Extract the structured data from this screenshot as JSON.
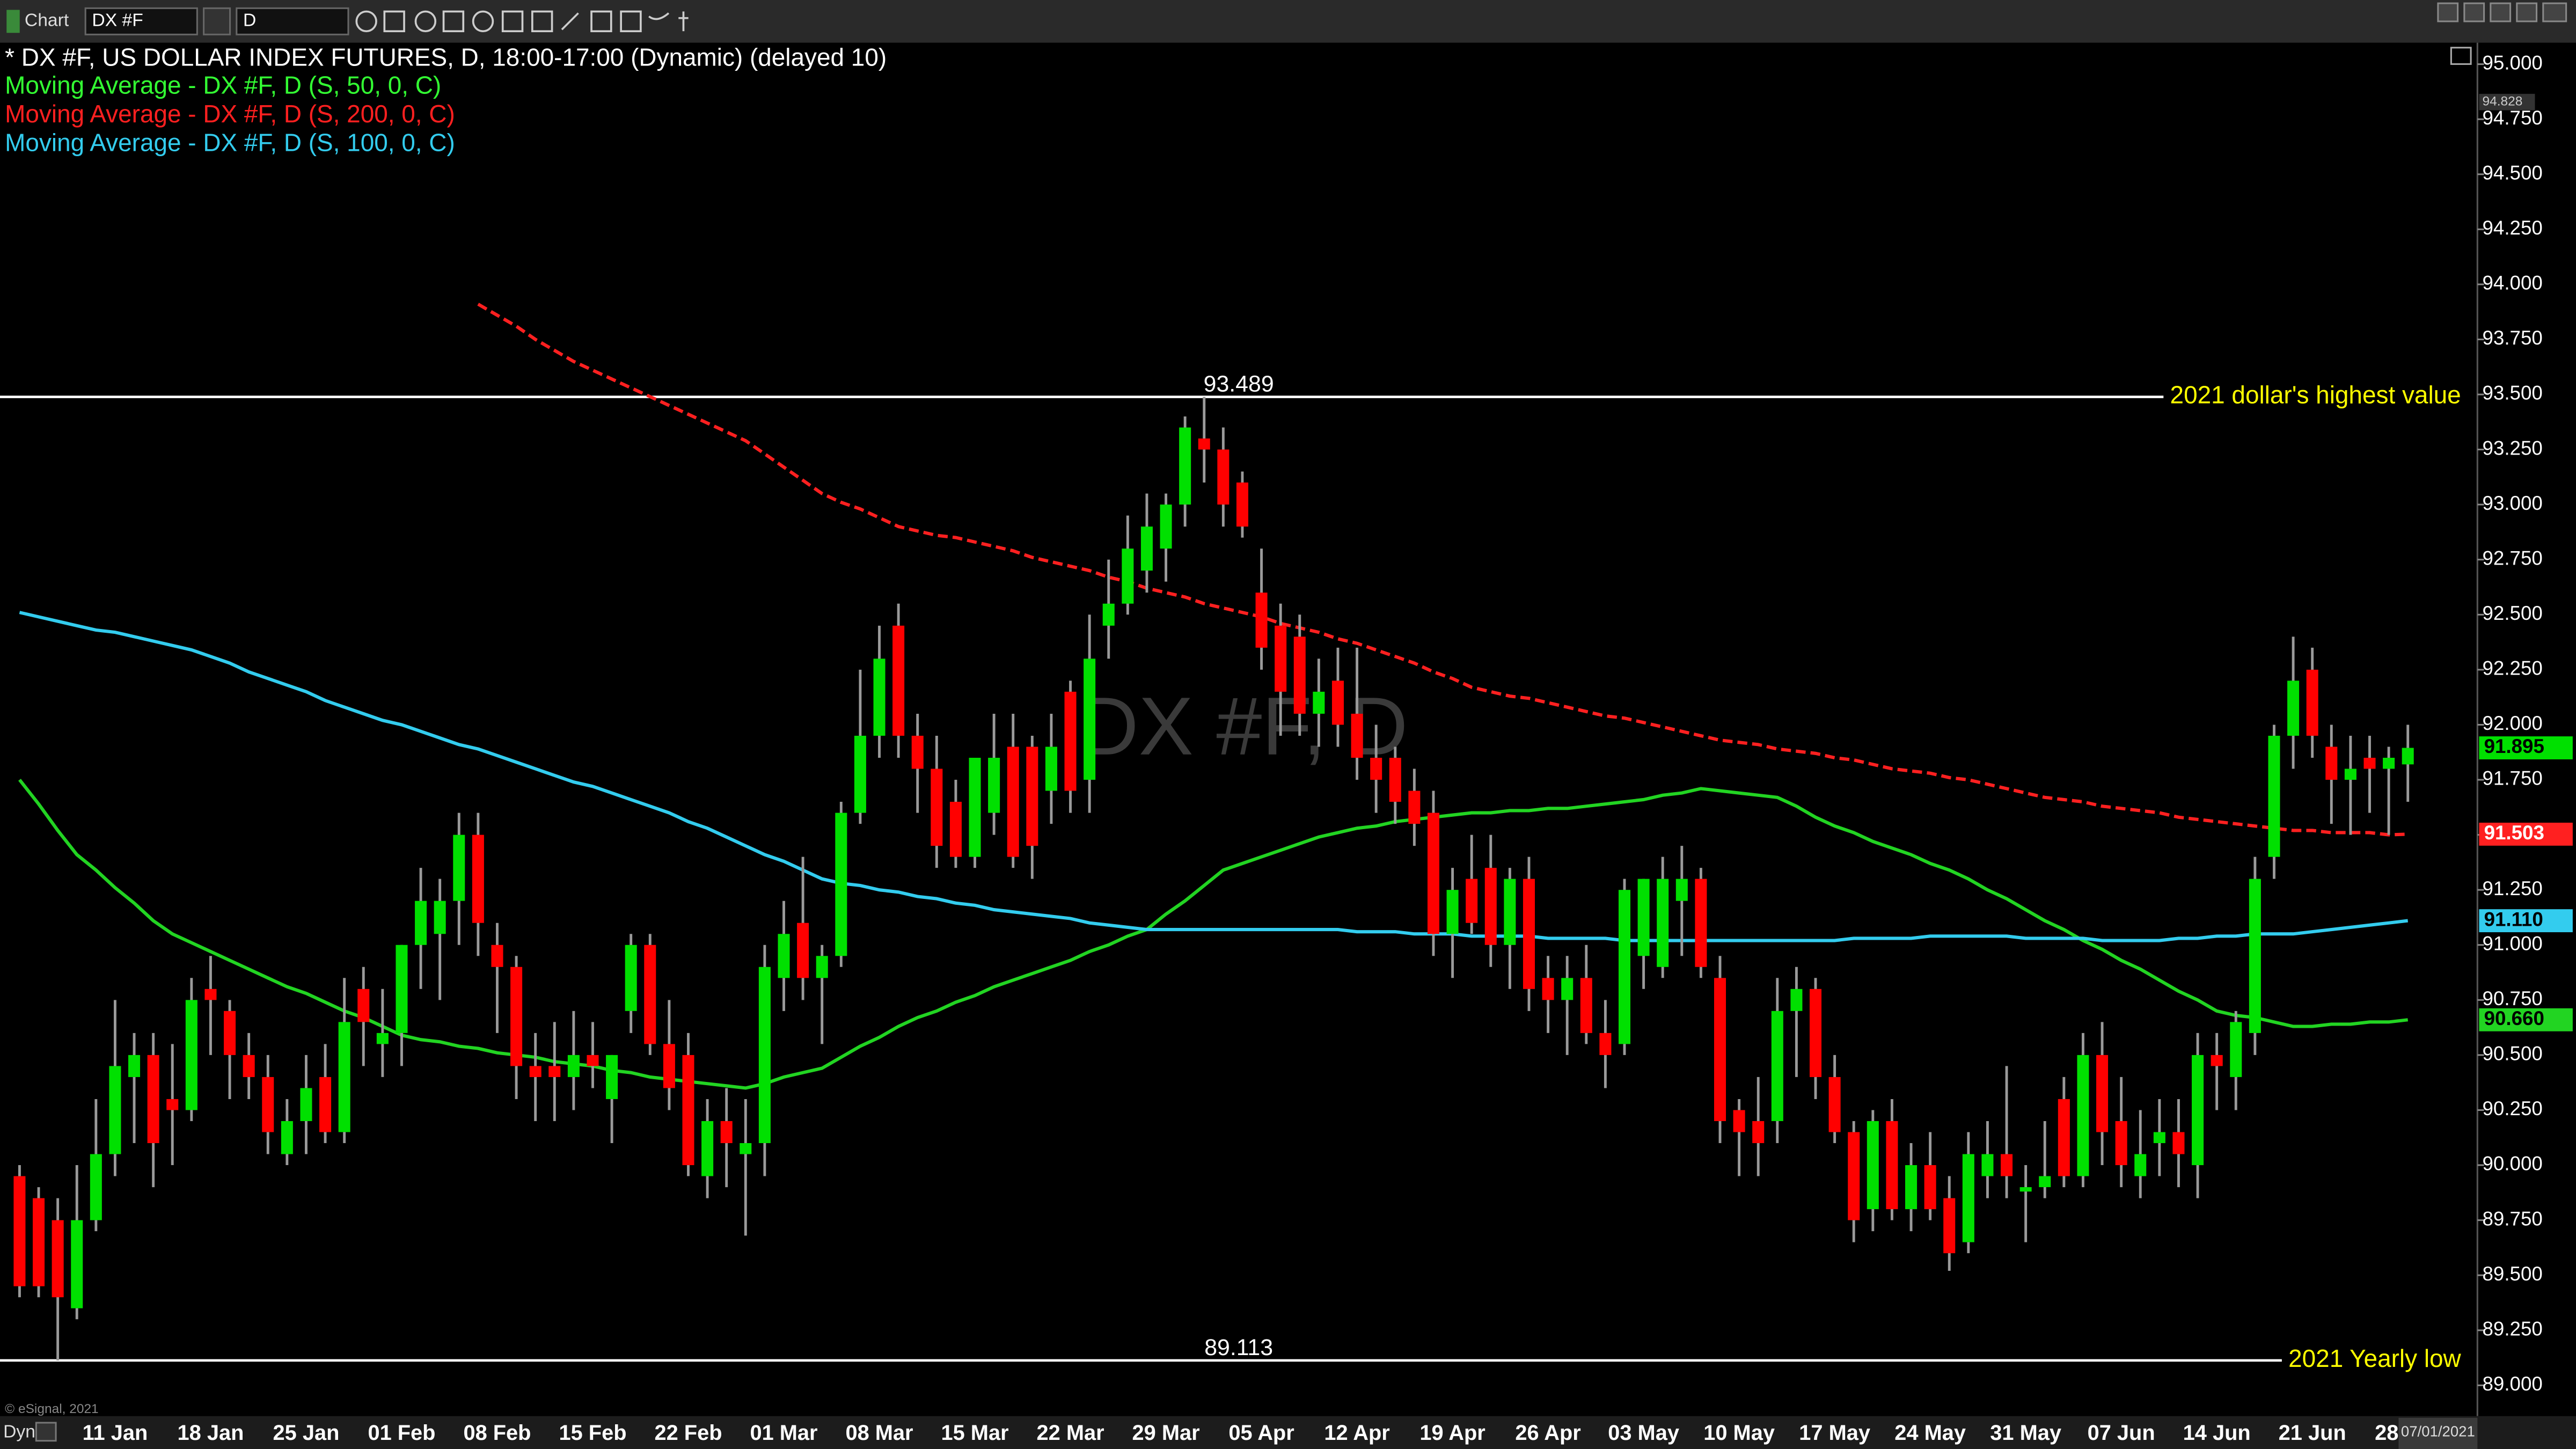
{
  "ui": {
    "toolbar": {
      "label": "Chart",
      "symbol": "DX #F",
      "interval": "D"
    },
    "footer": {
      "mode": "Dyn",
      "copyright": "© eSignal, 2021",
      "date": "07/01/2021"
    }
  },
  "chart_data": {
    "type": "candlestick",
    "title": "* DX #F, US DOLLAR INDEX FUTURES, D, 18:00-17:00 (Dynamic) (delayed 10)",
    "watermark": "DX #F, D",
    "up_color": "#00e000",
    "down_color": "#ff0000",
    "wick_color": "#9a9a9a",
    "categories": [
      null,
      null,
      null,
      null,
      null,
      "11 Jan",
      null,
      null,
      null,
      null,
      "18 Jan",
      null,
      null,
      null,
      null,
      "25 Jan",
      null,
      null,
      null,
      null,
      "01 Feb",
      null,
      null,
      null,
      null,
      "08 Feb",
      null,
      null,
      null,
      null,
      "15 Feb",
      null,
      null,
      null,
      null,
      "22 Feb",
      null,
      null,
      null,
      null,
      "01 Mar",
      null,
      null,
      null,
      null,
      "08 Mar",
      null,
      null,
      null,
      null,
      "15 Mar",
      null,
      null,
      null,
      null,
      "22 Mar",
      null,
      null,
      null,
      null,
      "29 Mar",
      null,
      null,
      null,
      null,
      "05 Apr",
      null,
      null,
      null,
      null,
      "12 Apr",
      null,
      null,
      null,
      null,
      "19 Apr",
      null,
      null,
      null,
      null,
      "26 Apr",
      null,
      null,
      null,
      null,
      "03 May",
      null,
      null,
      null,
      null,
      "10 May",
      null,
      null,
      null,
      null,
      "17 May",
      null,
      null,
      null,
      null,
      "24 May",
      null,
      null,
      null,
      null,
      "31 May",
      null,
      null,
      null,
      null,
      "07 Jun",
      null,
      null,
      null,
      null,
      "14 Jun",
      null,
      null,
      null,
      null,
      "21 Jun",
      null,
      null,
      null,
      null,
      "28"
    ],
    "open": [
      89.95,
      89.85,
      89.75,
      89.35,
      89.75,
      90.05,
      90.4,
      90.5,
      90.3,
      90.25,
      90.8,
      90.7,
      90.5,
      90.4,
      90.05,
      90.2,
      90.4,
      90.15,
      90.8,
      90.55,
      90.6,
      91.0,
      91.05,
      91.2,
      91.5,
      91.0,
      90.9,
      90.45,
      90.45,
      90.4,
      90.5,
      90.3,
      90.7,
      91.0,
      90.55,
      90.5,
      89.95,
      90.2,
      90.05,
      90.1,
      90.85,
      91.1,
      90.85,
      90.95,
      91.6,
      91.95,
      92.45,
      91.95,
      91.8,
      91.65,
      91.4,
      91.6,
      91.9,
      91.9,
      91.7,
      92.15,
      91.75,
      92.45,
      92.55,
      92.7,
      92.8,
      93.0,
      93.3,
      93.25,
      93.1,
      92.6,
      92.45,
      92.4,
      92.05,
      92.2,
      92.05,
      91.85,
      91.85,
      91.7,
      91.6,
      91.05,
      91.3,
      91.35,
      91.0,
      91.3,
      90.85,
      90.75,
      90.85,
      90.6,
      90.55,
      90.95,
      90.9,
      91.2,
      91.3,
      90.85,
      90.25,
      90.2,
      90.2,
      90.7,
      90.8,
      90.4,
      90.15,
      89.8,
      90.2,
      89.8,
      90.0,
      89.85,
      89.65,
      89.95,
      90.05,
      89.88,
      89.9,
      90.3,
      89.95,
      90.5,
      90.2,
      89.95,
      90.1,
      90.15,
      90.0,
      90.5,
      90.4,
      90.6,
      91.4,
      91.95,
      92.25,
      91.9,
      91.75,
      91.85,
      91.8,
      91.82
    ],
    "high": [
      90.0,
      89.9,
      89.85,
      90.0,
      90.3,
      90.75,
      90.6,
      90.6,
      90.55,
      90.85,
      90.95,
      90.75,
      90.6,
      90.5,
      90.3,
      90.5,
      90.55,
      90.85,
      90.9,
      90.8,
      91.0,
      91.35,
      91.3,
      91.6,
      91.6,
      91.1,
      90.95,
      90.6,
      90.65,
      90.7,
      90.65,
      90.5,
      91.05,
      91.05,
      90.75,
      90.6,
      90.3,
      90.35,
      90.3,
      91.0,
      91.2,
      91.4,
      91.0,
      91.65,
      92.25,
      92.45,
      92.55,
      92.05,
      91.95,
      91.75,
      91.85,
      92.05,
      92.05,
      91.95,
      92.05,
      92.2,
      92.5,
      92.75,
      92.95,
      93.05,
      93.05,
      93.4,
      93.489,
      93.35,
      93.15,
      92.8,
      92.55,
      92.5,
      92.3,
      92.35,
      92.35,
      92.0,
      91.9,
      91.8,
      91.7,
      91.35,
      91.5,
      91.5,
      91.35,
      91.4,
      90.95,
      90.95,
      91.0,
      90.75,
      91.3,
      91.3,
      91.4,
      91.45,
      91.35,
      90.95,
      90.3,
      90.4,
      90.85,
      90.9,
      90.85,
      90.5,
      90.2,
      90.25,
      90.3,
      90.1,
      90.15,
      89.95,
      90.15,
      90.2,
      90.45,
      90.0,
      90.2,
      90.4,
      90.6,
      90.65,
      90.4,
      90.25,
      90.3,
      90.3,
      90.6,
      90.6,
      90.7,
      91.4,
      92.0,
      92.4,
      92.35,
      92.0,
      91.95,
      91.95,
      91.9,
      92.0
    ],
    "low": [
      89.4,
      89.4,
      89.113,
      89.3,
      89.7,
      89.95,
      90.1,
      89.9,
      90.0,
      90.2,
      90.5,
      90.3,
      90.3,
      90.05,
      90.0,
      90.05,
      90.1,
      90.1,
      90.45,
      90.4,
      90.45,
      90.8,
      90.75,
      91.0,
      90.95,
      90.6,
      90.3,
      90.2,
      90.2,
      90.25,
      90.35,
      90.1,
      90.6,
      90.5,
      90.25,
      89.95,
      89.85,
      89.9,
      89.68,
      89.95,
      90.7,
      90.75,
      90.55,
      90.9,
      91.55,
      91.85,
      91.85,
      91.6,
      91.35,
      91.35,
      91.35,
      91.5,
      91.35,
      91.3,
      91.55,
      91.6,
      91.6,
      92.3,
      92.5,
      92.6,
      92.65,
      92.9,
      93.1,
      92.9,
      92.85,
      92.25,
      91.95,
      91.95,
      91.9,
      91.9,
      91.75,
      91.6,
      91.55,
      91.45,
      90.95,
      90.85,
      91.05,
      90.9,
      90.8,
      90.7,
      90.6,
      90.5,
      90.55,
      90.35,
      90.5,
      90.8,
      90.85,
      90.95,
      90.85,
      90.1,
      89.95,
      89.95,
      90.1,
      90.4,
      90.3,
      90.1,
      89.65,
      89.7,
      89.75,
      89.7,
      89.75,
      89.52,
      89.6,
      89.85,
      89.85,
      89.65,
      89.85,
      89.9,
      89.9,
      90.0,
      89.9,
      89.85,
      89.95,
      89.9,
      89.85,
      90.25,
      90.25,
      90.5,
      91.3,
      91.8,
      91.85,
      91.55,
      91.5,
      91.6,
      91.5,
      91.65
    ],
    "close": [
      89.45,
      89.45,
      89.4,
      89.75,
      90.05,
      90.45,
      90.5,
      90.1,
      90.25,
      90.75,
      90.75,
      90.5,
      90.4,
      90.15,
      90.2,
      90.35,
      90.15,
      90.65,
      90.65,
      90.6,
      91.0,
      91.2,
      91.2,
      91.5,
      91.1,
      90.9,
      90.45,
      90.4,
      90.4,
      90.5,
      90.45,
      90.5,
      91.0,
      90.55,
      90.35,
      90.0,
      90.2,
      90.1,
      90.1,
      90.9,
      91.05,
      90.85,
      90.95,
      91.6,
      91.95,
      92.3,
      91.95,
      91.8,
      91.45,
      91.4,
      91.85,
      91.85,
      91.4,
      91.45,
      91.9,
      91.7,
      92.3,
      92.55,
      92.8,
      92.9,
      93.0,
      93.35,
      93.25,
      93.0,
      92.9,
      92.35,
      92.15,
      92.05,
      92.15,
      92.0,
      91.85,
      91.75,
      91.65,
      91.55,
      91.05,
      91.25,
      91.1,
      91.0,
      91.3,
      90.8,
      90.75,
      90.85,
      90.6,
      90.5,
      91.25,
      91.3,
      91.3,
      91.3,
      90.9,
      90.2,
      90.15,
      90.1,
      90.7,
      90.8,
      90.4,
      90.15,
      89.75,
      90.2,
      89.8,
      90.0,
      89.8,
      89.6,
      90.05,
      90.05,
      89.95,
      89.9,
      89.95,
      89.95,
      90.5,
      90.15,
      90.0,
      90.05,
      90.15,
      90.05,
      90.5,
      90.45,
      90.65,
      91.3,
      91.95,
      92.2,
      91.95,
      91.75,
      91.8,
      91.8,
      91.85,
      91.895
    ],
    "series": [
      {
        "name": "Moving Average - DX #F, D (S, 50, 0, C)",
        "color": "#22d422",
        "legend_color": "#33ff33",
        "last_value_label": "90.660",
        "values": [
          91.75,
          91.64,
          91.52,
          91.41,
          91.34,
          91.26,
          91.19,
          91.11,
          91.05,
          91.01,
          90.97,
          90.93,
          90.89,
          90.85,
          90.81,
          90.78,
          90.74,
          90.7,
          90.67,
          90.63,
          90.59,
          90.57,
          90.56,
          90.54,
          90.53,
          90.51,
          90.5,
          90.49,
          90.47,
          90.46,
          90.45,
          90.43,
          90.42,
          90.4,
          90.39,
          90.38,
          90.37,
          90.36,
          90.35,
          90.37,
          90.4,
          90.42,
          90.44,
          90.49,
          90.54,
          90.58,
          90.63,
          90.67,
          90.7,
          90.74,
          90.77,
          90.81,
          90.84,
          90.87,
          90.9,
          90.93,
          90.97,
          91.0,
          91.04,
          91.07,
          91.14,
          91.2,
          91.27,
          91.34,
          91.37,
          91.4,
          91.43,
          91.46,
          91.49,
          91.51,
          91.53,
          91.54,
          91.56,
          91.57,
          91.58,
          91.59,
          91.6,
          91.6,
          91.61,
          91.61,
          91.62,
          91.62,
          91.63,
          91.64,
          91.65,
          91.66,
          91.68,
          91.69,
          91.71,
          91.7,
          91.69,
          91.68,
          91.67,
          91.63,
          91.58,
          91.54,
          91.51,
          91.47,
          91.44,
          91.41,
          91.37,
          91.34,
          91.3,
          91.25,
          91.21,
          91.16,
          91.11,
          91.07,
          91.02,
          90.98,
          90.93,
          90.89,
          90.84,
          90.79,
          90.75,
          90.7,
          90.68,
          90.67,
          90.65,
          90.63,
          90.63,
          90.64,
          90.64,
          90.65,
          90.65,
          90.66
        ]
      },
      {
        "name": "Moving Average - DX #F, D (S, 200, 0, C)",
        "color": "#ff2020",
        "legend_color": "#ff2020",
        "dashed": true,
        "values": [
          null,
          null,
          null,
          null,
          null,
          null,
          null,
          null,
          null,
          null,
          null,
          null,
          null,
          null,
          null,
          null,
          null,
          null,
          null,
          null,
          null,
          null,
          null,
          null,
          93.91,
          93.86,
          93.81,
          93.75,
          93.7,
          93.65,
          93.61,
          93.57,
          93.53,
          93.49,
          93.45,
          93.41,
          93.37,
          93.33,
          93.29,
          93.23,
          93.17,
          93.11,
          93.05,
          93.01,
          92.98,
          92.94,
          92.9,
          92.88,
          92.86,
          92.85,
          92.83,
          92.81,
          92.79,
          92.76,
          92.74,
          92.72,
          92.7,
          92.67,
          92.65,
          92.62,
          92.6,
          92.58,
          92.55,
          92.53,
          92.51,
          92.49,
          92.46,
          92.44,
          92.42,
          92.39,
          92.37,
          92.34,
          92.31,
          92.28,
          92.24,
          92.21,
          92.17,
          92.15,
          92.13,
          92.12,
          92.1,
          92.08,
          92.06,
          92.04,
          92.03,
          92.01,
          91.99,
          91.97,
          91.95,
          91.93,
          91.92,
          91.91,
          91.89,
          91.88,
          91.87,
          91.85,
          91.84,
          91.82,
          91.8,
          91.79,
          91.78,
          91.76,
          91.75,
          91.73,
          91.71,
          91.69,
          91.67,
          91.66,
          91.65,
          91.63,
          91.62,
          91.61,
          91.6,
          91.58,
          91.57,
          91.56,
          91.55,
          91.54,
          91.53,
          91.52,
          91.52,
          91.51,
          91.51,
          91.51,
          91.5,
          91.503
        ]
      },
      {
        "name": "Moving Average - DX #F, D (S, 100, 0, C)",
        "color": "#33ccee",
        "legend_color": "#33ccee",
        "last_value_label": "91.110",
        "values": [
          92.51,
          92.49,
          92.47,
          92.45,
          92.43,
          92.42,
          92.4,
          92.38,
          92.36,
          92.34,
          92.31,
          92.28,
          92.24,
          92.21,
          92.18,
          92.15,
          92.11,
          92.08,
          92.05,
          92.02,
          92.0,
          91.97,
          91.94,
          91.91,
          91.89,
          91.86,
          91.83,
          91.8,
          91.77,
          91.74,
          91.72,
          91.69,
          91.66,
          91.63,
          91.6,
          91.56,
          91.53,
          91.49,
          91.45,
          91.41,
          91.38,
          91.34,
          91.3,
          91.28,
          91.27,
          91.25,
          91.24,
          91.22,
          91.21,
          91.19,
          91.18,
          91.16,
          91.15,
          91.14,
          91.13,
          91.12,
          91.1,
          91.09,
          91.08,
          91.07,
          91.07,
          91.07,
          91.07,
          91.07,
          91.07,
          91.07,
          91.07,
          91.07,
          91.07,
          91.07,
          91.06,
          91.06,
          91.06,
          91.05,
          91.05,
          91.05,
          91.04,
          91.04,
          91.04,
          91.04,
          91.03,
          91.03,
          91.03,
          91.03,
          91.02,
          91.02,
          91.02,
          91.02,
          91.02,
          91.02,
          91.02,
          91.02,
          91.02,
          91.02,
          91.02,
          91.02,
          91.03,
          91.03,
          91.03,
          91.03,
          91.04,
          91.04,
          91.04,
          91.04,
          91.04,
          91.03,
          91.03,
          91.03,
          91.03,
          91.02,
          91.02,
          91.02,
          91.02,
          91.03,
          91.03,
          91.04,
          91.04,
          91.05,
          91.05,
          91.05,
          91.06,
          91.07,
          91.08,
          91.09,
          91.1,
          91.11
        ]
      }
    ],
    "hlines": [
      {
        "value": 93.489,
        "label": "2021 dollar's highest value"
      },
      {
        "value": 89.113,
        "label": "2021 Yearly low"
      }
    ],
    "price_marker": 94.828,
    "ylim": [
      88.86,
      95.09
    ],
    "yticks": [
      {
        "value": 89,
        "label": "89.000"
      },
      {
        "value": 89.25,
        "label": "89.250"
      },
      {
        "value": 89.5,
        "label": "89.500"
      },
      {
        "value": 89.75,
        "label": "89.750"
      },
      {
        "value": 90,
        "label": "90.000"
      },
      {
        "value": 90.25,
        "label": "90.250"
      },
      {
        "value": 90.5,
        "label": "90.500"
      },
      {
        "value": 90.75,
        "label": "90.750"
      },
      {
        "value": 91,
        "label": "91.000"
      },
      {
        "value": 91.25,
        "label": "91.250"
      },
      {
        "value": 91.5,
        "label": "91.500"
      },
      {
        "value": 91.75,
        "label": "91.750"
      },
      {
        "value": 92,
        "label": "92.000"
      },
      {
        "value": 92.25,
        "label": "92.250"
      },
      {
        "value": 92.5,
        "label": "92.500"
      },
      {
        "value": 92.75,
        "label": "92.750"
      },
      {
        "value": 93,
        "label": "93.000"
      },
      {
        "value": 93.25,
        "label": "93.250"
      },
      {
        "value": 93.5,
        "label": "93.500"
      },
      {
        "value": 93.75,
        "label": "93.750"
      },
      {
        "value": 94,
        "label": "94.000"
      },
      {
        "value": 94.25,
        "label": "94.250"
      },
      {
        "value": 94.5,
        "label": "94.500"
      },
      {
        "value": 94.75,
        "label": "94.750"
      },
      {
        "value": 95,
        "label": "95.000"
      }
    ],
    "grid": false
  }
}
